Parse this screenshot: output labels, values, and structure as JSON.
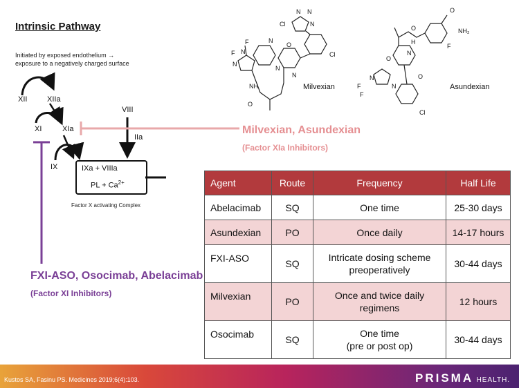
{
  "slide": {
    "title": "Intrinsic Pathway",
    "initiated_line1": "Initiated by exposed endothelium →",
    "initiated_line2": "exposure to a negatively charged surface"
  },
  "pathway": {
    "xii": "XII",
    "xiia": "XIIa",
    "xi": "XI",
    "xia": "XIa",
    "viii": "VIII",
    "iia": "IIa",
    "ix": "IX",
    "complex_line1": "IXa   +   VIIIa",
    "complex_line2_pre": "PL + Ca",
    "complex_line2_sup": "2+",
    "complex_caption": "Factor X activating Complex"
  },
  "inhibitors": {
    "xia_names": "Milvexian, Asundexian",
    "xia_class": "(Factor XIa Inhibitors)",
    "xi_names": "FXI-ASO, Osocimab, Abelacimab",
    "xi_class": "(Factor XI Inhibitors)",
    "colors": {
      "xia": "#e58f92",
      "xi": "#7a3f96"
    }
  },
  "structures": {
    "milvexian_label": "Milvexian",
    "asundexian_label": "Asundexian",
    "atoms": {
      "cl": "Cl",
      "f": "F",
      "n": "N",
      "nh": "NH",
      "o": "O",
      "nh2": "NH₂",
      "h": "H"
    }
  },
  "table": {
    "headers": [
      "Agent",
      "Route",
      "Frequency",
      "Half Life"
    ],
    "rows": [
      {
        "agent": "Abelacimab",
        "route": "SQ",
        "frequency_1": "One time",
        "frequency_2": "",
        "half_life": "25-30 days"
      },
      {
        "agent": "Asundexian",
        "route": "PO",
        "frequency_1": "Once daily",
        "frequency_2": "",
        "half_life": "14-17 hours"
      },
      {
        "agent": "FXI-ASO",
        "route": "SQ",
        "frequency_1": "Intricate dosing scheme",
        "frequency_2": "preoperatively",
        "half_life": "30-44 days"
      },
      {
        "agent": "Milvexian",
        "route": "PO",
        "frequency_1": "Once and twice daily",
        "frequency_2": "regimens",
        "half_life": "12 hours"
      },
      {
        "agent": "Osocimab",
        "route": "SQ",
        "frequency_1": "One time",
        "frequency_2": "(pre or post op)",
        "half_life": "30-44 days"
      }
    ],
    "header_color": "#b23a3d",
    "stripe_color": "#f3d4d5"
  },
  "footer": {
    "citation": "Kustos SA, Fasinu PS. Medicines 2019;6(4):103.",
    "logo_main": "PRISMA",
    "logo_sub": "HEALTH."
  }
}
